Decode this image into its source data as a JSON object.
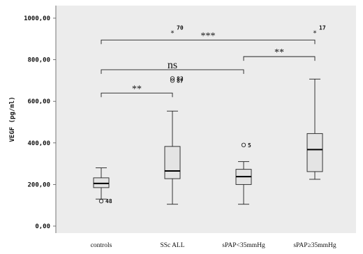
{
  "chart_data": {
    "type": "boxplot",
    "ylabel": "VEGF (pg/ml)",
    "ylim": [
      0,
      1050
    ],
    "yticks": [
      {
        "value": 0,
        "label": "0,00"
      },
      {
        "value": 200,
        "label": "200,00"
      },
      {
        "value": 400,
        "label": "400,00"
      },
      {
        "value": 600,
        "label": "600,00"
      },
      {
        "value": 800,
        "label": "800,00"
      },
      {
        "value": 1000,
        "label": "1000,00"
      }
    ],
    "grid": false,
    "box_color": "#e4e4e4",
    "plot_bg": "#ececec",
    "categories": [
      "controls",
      "SSc ALL",
      "sPAP<35mmHg",
      "sPAP≥35mmHg"
    ],
    "boxes": [
      {
        "category": "controls",
        "whisker_low": 130,
        "q1": 185,
        "median": 205,
        "q3": 232,
        "whisker_high": 280,
        "outliers": [
          {
            "value": 120,
            "marker": "circle",
            "label": "48"
          }
        ]
      },
      {
        "category": "SSc ALL",
        "whisker_low": 105,
        "q1": 228,
        "median": 265,
        "q3": 383,
        "whisker_high": 553,
        "outliers": [
          {
            "value": 710,
            "marker": "circle",
            "label": "82"
          },
          {
            "value": 700,
            "marker": "circle",
            "label": "87"
          },
          {
            "value": 932,
            "marker": "star",
            "label": "70"
          }
        ]
      },
      {
        "category": "sPAP<35mmHg",
        "whisker_low": 105,
        "q1": 200,
        "median": 238,
        "q3": 273,
        "whisker_high": 310,
        "outliers": [
          {
            "value": 390,
            "marker": "circle",
            "label": "5"
          }
        ]
      },
      {
        "category": "sPAP≥35mmHg",
        "whisker_low": 225,
        "q1": 262,
        "median": 368,
        "q3": 445,
        "whisker_high": 707,
        "outliers": [
          {
            "value": 932,
            "marker": "star",
            "label": "17"
          }
        ]
      }
    ],
    "annotations": [
      {
        "from": "controls",
        "to": "sPAP≥35mmHg",
        "level": 895,
        "text": "***"
      },
      {
        "from": "sPAP<35mmHg",
        "to": "sPAP≥35mmHg",
        "level": 815,
        "text": "**"
      },
      {
        "from": "controls",
        "to": "SSc ALL",
        "level": 640,
        "text": "**"
      },
      {
        "from": "controls",
        "to": "sPAP<35mmHg",
        "level": 752,
        "text": "ns"
      }
    ]
  }
}
